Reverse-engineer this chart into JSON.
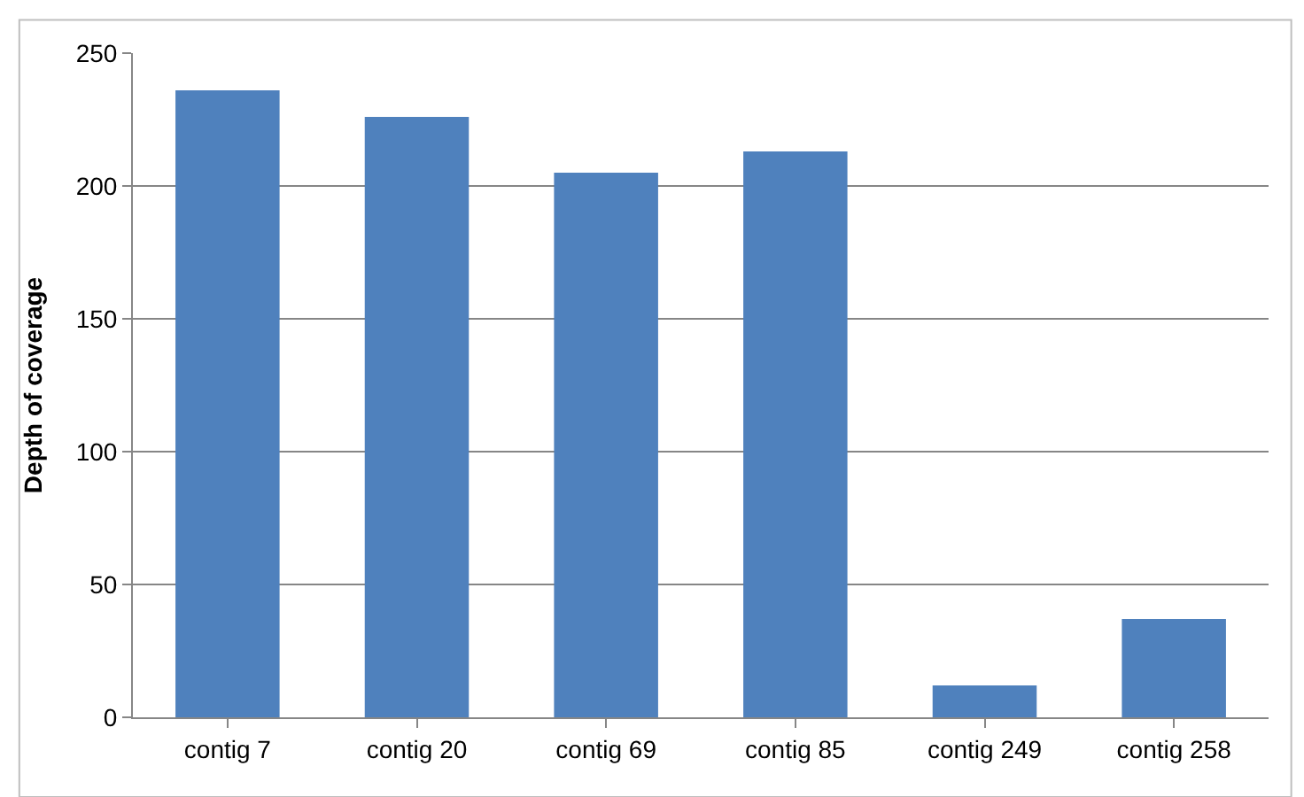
{
  "chart_data": {
    "type": "bar",
    "ylabel": "Depth of coverage",
    "categories": [
      "contig 7",
      "contig 20",
      "contig 69",
      "contig 85",
      "contig 249",
      "contig 258"
    ],
    "values": [
      236,
      226,
      205,
      213,
      12,
      37
    ],
    "color": "#4f81bd",
    "ylim": [
      0,
      250
    ],
    "yticks": [
      0,
      50,
      100,
      150,
      200,
      250
    ],
    "grid": "y"
  }
}
